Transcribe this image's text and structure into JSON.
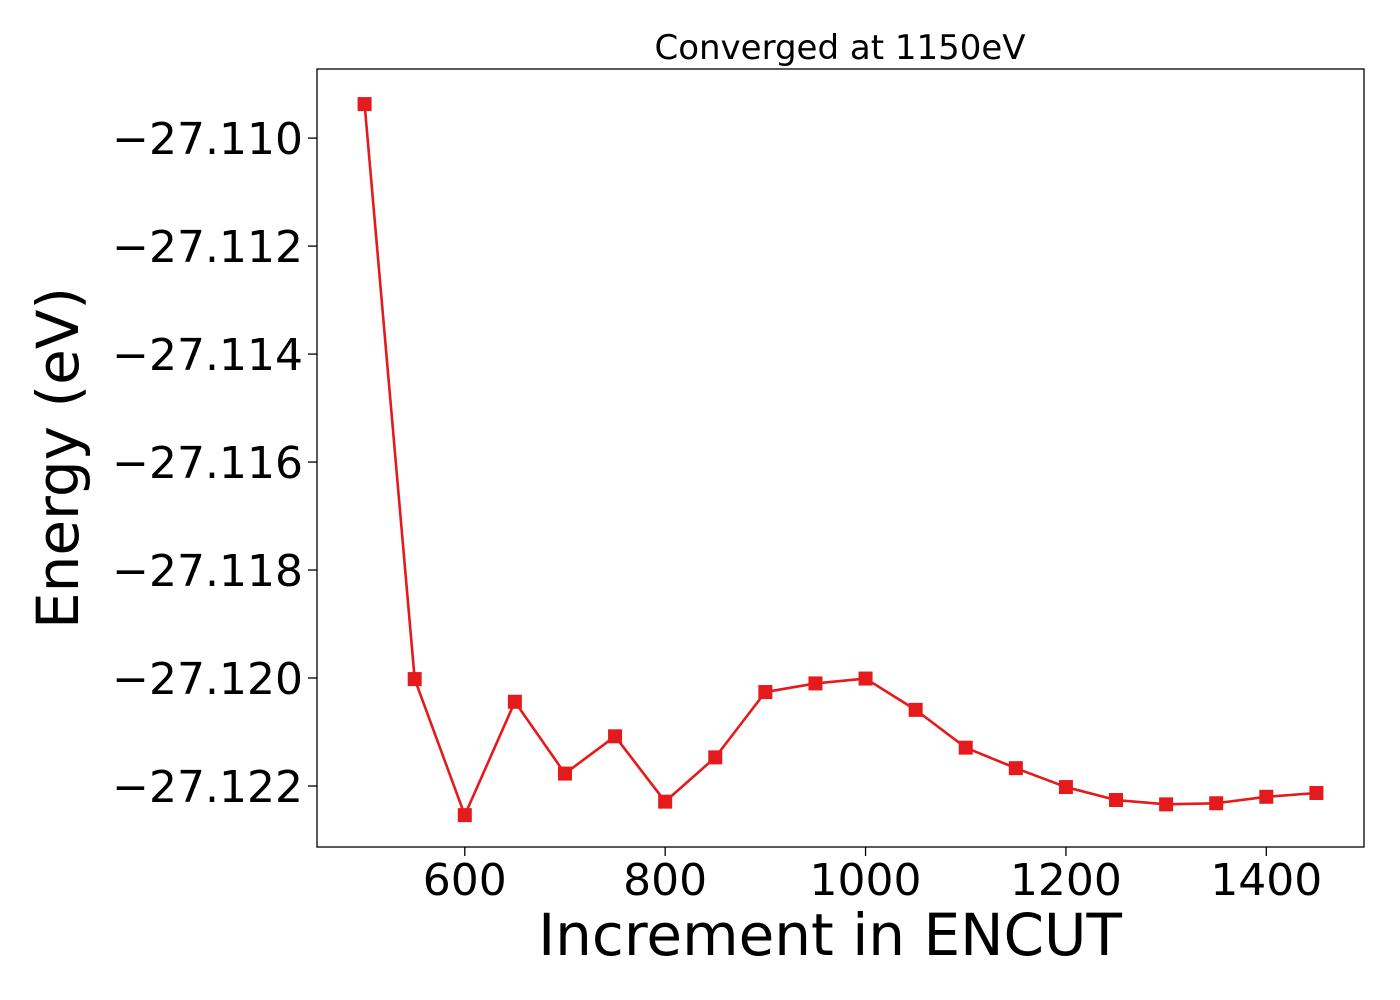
{
  "chart_data": {
    "type": "line",
    "title": "Converged at 1150eV",
    "xlabel": "Increment in ENCUT",
    "ylabel": "Energy (eV)",
    "xlim": [
      452.5,
      1497.5
    ],
    "ylim": [
      -27.12313,
      -27.10872
    ],
    "xticks": [
      600,
      800,
      1000,
      1200,
      1400
    ],
    "xtick_labels": [
      "600",
      "800",
      "1000",
      "1200",
      "1400"
    ],
    "yticks": [
      -27.11,
      -27.112,
      -27.114,
      -27.116,
      -27.118,
      -27.12,
      -27.122
    ],
    "ytick_labels": [
      "−27.110",
      "−27.112",
      "−27.114",
      "−27.116",
      "−27.118",
      "−27.120",
      "−27.122"
    ],
    "grid": false,
    "legend": "none",
    "series": [
      {
        "color": "#e41a1c",
        "marker": "square",
        "x": [
          500,
          550,
          600,
          650,
          700,
          750,
          800,
          850,
          900,
          950,
          1000,
          1050,
          1100,
          1150,
          1200,
          1250,
          1300,
          1350,
          1400,
          1450
        ],
        "y": [
          -27.10937,
          -27.12002,
          -27.12254,
          -27.12044,
          -27.12177,
          -27.12108,
          -27.12229,
          -27.12147,
          -27.12026,
          -27.1201,
          -27.12001,
          -27.12059,
          -27.12129,
          -27.12167,
          -27.12202,
          -27.12226,
          -27.12234,
          -27.12232,
          -27.1222,
          -27.12213
        ]
      }
    ]
  }
}
